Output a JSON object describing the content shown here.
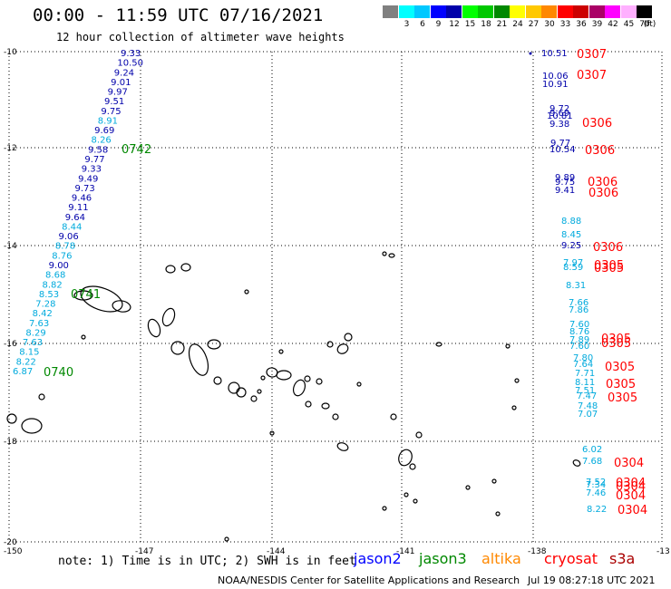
{
  "header": {
    "title": "00:00 - 11:59 UTC 07/16/2021",
    "subtitle": "12 hour collection of altimeter wave heights"
  },
  "legend": {
    "unit": "(ft)",
    "ticks": [
      "3",
      "6",
      "9",
      "12",
      "15",
      "18",
      "21",
      "24",
      "27",
      "30",
      "33",
      "36",
      "39",
      "42",
      "45",
      "70"
    ],
    "colors": [
      "#808080",
      "#00ffff",
      "#00c8ff",
      "#0000ff",
      "#0000aa",
      "#00ff00",
      "#00c800",
      "#008800",
      "#ffff00",
      "#ffc800",
      "#ff8800",
      "#ff0000",
      "#cc0000",
      "#aa0066",
      "#ff00ff",
      "#ffb0ff",
      "#000000"
    ]
  },
  "map": {
    "lat_labels": [
      "-10",
      "-12",
      "-14",
      "-16",
      "-18",
      "-20"
    ],
    "lon_labels": [
      "-150",
      "-147",
      "-144",
      "-141",
      "-138",
      "-13"
    ],
    "times": [
      {
        "text": "0307",
        "color": "#ff0000"
      },
      {
        "text": "0307",
        "color": "#ff0000"
      },
      {
        "text": "0306",
        "color": "#ff0000"
      },
      {
        "text": "0306",
        "color": "#ff0000"
      },
      {
        "text": "0306",
        "color": "#ff0000"
      },
      {
        "text": "0306",
        "color": "#ff0000"
      },
      {
        "text": "0306",
        "color": "#ff0000"
      },
      {
        "text": "0305",
        "color": "#ff0000"
      },
      {
        "text": "0305",
        "color": "#ff0000"
      },
      {
        "text": "0305",
        "color": "#ff0000"
      },
      {
        "text": "0305",
        "color": "#ff0000"
      },
      {
        "text": "0305",
        "color": "#ff0000"
      },
      {
        "text": "0305",
        "color": "#ff0000"
      },
      {
        "text": "0305",
        "color": "#ff0000"
      },
      {
        "text": "0304",
        "color": "#ff0000"
      },
      {
        "text": "0304",
        "color": "#ff0000"
      },
      {
        "text": "0304",
        "color": "#ff0000"
      },
      {
        "text": "0304",
        "color": "#ff0000"
      },
      {
        "text": "0304",
        "color": "#ff0000"
      },
      {
        "text": "0742",
        "color": "#008800"
      },
      {
        "text": "0741",
        "color": "#008800"
      },
      {
        "text": "0740",
        "color": "#008800"
      }
    ],
    "track_west": [
      "9.33",
      "10.50",
      "9.24",
      "9.01",
      "9.97",
      "9.51",
      "9.75",
      "8.91",
      "9.69",
      "8.26",
      "9.58",
      "9.77",
      "9.33",
      "9.49",
      "9.73",
      "9.46",
      "9.11",
      "9.64",
      "8.44",
      "9.06",
      "8.78",
      "8.76",
      "9.00",
      "8.68",
      "8.82",
      "8.53",
      "7.28",
      "8.42",
      "7.63",
      "8.29",
      "7.63",
      "8.15",
      "8.22",
      "6.87"
    ],
    "track_east": [
      "10.51",
      "10.06",
      "10.91",
      "9.72",
      "9.69",
      "10.81",
      "9.38",
      "9.77",
      "10.54",
      "9.89",
      "9.75",
      "9.41",
      "8.88",
      "8.45",
      "9.25",
      "7.97",
      "8.59",
      "8.31",
      "7.66",
      "7.86",
      "7.60",
      "8.76",
      "7.89",
      "7.60",
      "7.80",
      "7.64",
      "7.71",
      "8.11",
      "7.51",
      "7.47",
      "7.48",
      "7.07",
      "6.02",
      "7.68",
      "7.52",
      "7.34",
      "7.46",
      "8.22"
    ]
  },
  "footer": {
    "note": "note: 1) Time is in UTC; 2) SWH is in feet",
    "satellites": [
      {
        "name": "jason2",
        "color": "#0000ff"
      },
      {
        "name": "jason3",
        "color": "#008800"
      },
      {
        "name": "altika",
        "color": "#ff8800"
      },
      {
        "name": "cryosat",
        "color": "#ff0000"
      },
      {
        "name": "s3a",
        "color": "#aa0000"
      }
    ],
    "credit": "NOAA/NESDIS Center for Satellite Applications and Research",
    "timestamp": "Jul 19 08:27:18 UTC 2021"
  }
}
